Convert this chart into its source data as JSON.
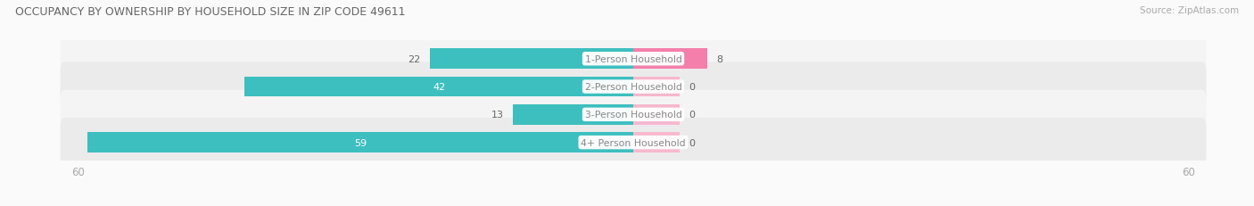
{
  "title": "OCCUPANCY BY OWNERSHIP BY HOUSEHOLD SIZE IN ZIP CODE 49611",
  "source": "Source: ZipAtlas.com",
  "categories": [
    "1-Person Household",
    "2-Person Household",
    "3-Person Household",
    "4+ Person Household"
  ],
  "owner_values": [
    22,
    42,
    13,
    59
  ],
  "renter_values": [
    8,
    0,
    0,
    0
  ],
  "renter_display_min": 5,
  "owner_color": "#3dbfbf",
  "renter_color": "#f47faa",
  "renter_color_light": "#f7b8ce",
  "x_max": 60,
  "title_color": "#666666",
  "source_color": "#aaaaaa",
  "axis_label_color": "#aaaaaa",
  "label_inside_color": "#ffffff",
  "label_outside_color": "#666666",
  "cat_label_color": "#888888",
  "row_bg_light": "#f4f4f4",
  "row_bg_dark": "#ebebeb",
  "fig_bg": "#fafafa"
}
